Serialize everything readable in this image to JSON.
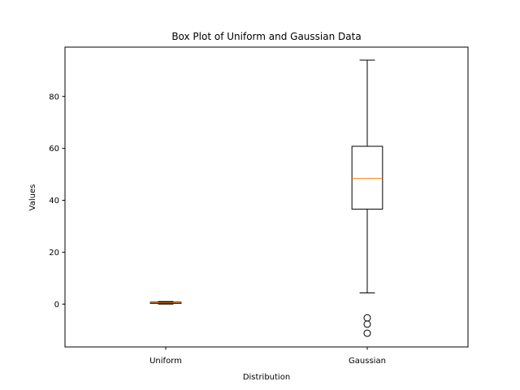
{
  "chart_data": {
    "type": "box",
    "title": "Box Plot of Uniform and Gaussian Data",
    "xlabel": "Distribution",
    "ylabel": "Values",
    "ylim": [
      -16.5,
      99
    ],
    "yticks": [
      0,
      20,
      40,
      60,
      80
    ],
    "grid": false,
    "categories": [
      "Uniform",
      "Gaussian"
    ],
    "boxes": [
      {
        "whisker_low": 0.0,
        "q1": 0.25,
        "median": 0.5,
        "q3": 0.75,
        "whisker_high": 1.0,
        "outliers": []
      },
      {
        "whisker_low": 4.3,
        "q1": 36.6,
        "median": 48.4,
        "q3": 60.8,
        "whisker_high": 94.0,
        "outliers": [
          -5.3,
          -7.7,
          -11.2
        ]
      }
    ],
    "colors": {
      "box": "#000000",
      "median": "#ff7f0e",
      "axes": "#000000",
      "background": "#ffffff"
    }
  }
}
